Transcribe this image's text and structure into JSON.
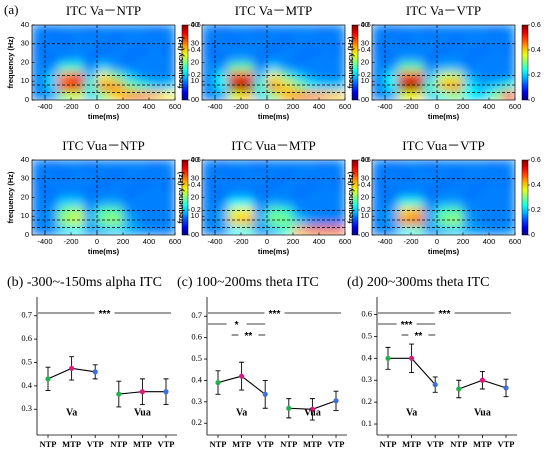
{
  "panel_label": "(a)",
  "chart_data": [
    {
      "type": "heatmap",
      "title": "ITC Va－NTP",
      "xlabel": "time(ms)",
      "ylabel": "frequency (Hz)",
      "x_bins": [
        -500,
        -400,
        -300,
        -200,
        -100,
        0,
        100,
        200,
        300,
        400,
        500,
        600
      ],
      "y_bins": [
        0,
        5,
        10,
        15,
        20,
        25,
        30,
        35,
        40
      ],
      "xlim": [
        -500,
        600
      ],
      "ylim": [
        0,
        40
      ],
      "xticks": [
        -400,
        -200,
        0,
        200,
        400,
        600
      ],
      "yticks": [
        0,
        10,
        20,
        30,
        40
      ],
      "vlines": [
        -400,
        0
      ],
      "hlines": [
        4,
        8,
        13,
        30
      ],
      "clim": [
        0,
        0.6
      ],
      "cticks": [
        0,
        0.2,
        0.4,
        0.6
      ],
      "values": [
        [
          0.15,
          0.16,
          0.3,
          0.35,
          0.2,
          0.3,
          0.4,
          0.45,
          0.45,
          0.42,
          0.38
        ],
        [
          0.15,
          0.2,
          0.5,
          0.55,
          0.25,
          0.45,
          0.45,
          0.3,
          0.25,
          0.2,
          0.2
        ],
        [
          0.15,
          0.2,
          0.45,
          0.5,
          0.2,
          0.38,
          0.3,
          0.2,
          0.16,
          0.15,
          0.15
        ],
        [
          0.15,
          0.15,
          0.25,
          0.25,
          0.15,
          0.2,
          0.16,
          0.15,
          0.15,
          0.15,
          0.15
        ],
        [
          0.15,
          0.14,
          0.15,
          0.16,
          0.14,
          0.15,
          0.15,
          0.14,
          0.15,
          0.15,
          0.15
        ],
        [
          0.14,
          0.15,
          0.15,
          0.15,
          0.15,
          0.14,
          0.15,
          0.15,
          0.14,
          0.15,
          0.14
        ],
        [
          0.15,
          0.15,
          0.14,
          0.15,
          0.15,
          0.15,
          0.14,
          0.15,
          0.15,
          0.15,
          0.15
        ],
        [
          0.15,
          0.14,
          0.15,
          0.15,
          0.14,
          0.15,
          0.15,
          0.15,
          0.15,
          0.14,
          0.15
        ]
      ]
    },
    {
      "type": "heatmap",
      "title": "ITC Va－MTP",
      "xlabel": "time(ms)",
      "ylabel": "frequency (Hz)",
      "x_bins": [
        -500,
        -400,
        -300,
        -200,
        -100,
        0,
        100,
        200,
        300,
        400,
        500,
        600
      ],
      "y_bins": [
        0,
        5,
        10,
        15,
        20,
        25,
        30,
        35,
        40
      ],
      "xlim": [
        -500,
        600
      ],
      "ylim": [
        0,
        40
      ],
      "xticks": [
        -400,
        -200,
        0,
        200,
        400,
        600
      ],
      "yticks": [
        0,
        10,
        20,
        30,
        40
      ],
      "vlines": [
        -400,
        0
      ],
      "hlines": [
        4,
        8,
        13,
        30
      ],
      "clim": [
        0,
        0.6
      ],
      "cticks": [
        0,
        0.2,
        0.4,
        0.6
      ],
      "values": [
        [
          0.15,
          0.16,
          0.35,
          0.4,
          0.2,
          0.3,
          0.42,
          0.45,
          0.45,
          0.42,
          0.4
        ],
        [
          0.15,
          0.22,
          0.58,
          0.6,
          0.25,
          0.45,
          0.4,
          0.3,
          0.22,
          0.2,
          0.2
        ],
        [
          0.15,
          0.22,
          0.5,
          0.52,
          0.2,
          0.38,
          0.28,
          0.2,
          0.16,
          0.15,
          0.15
        ],
        [
          0.15,
          0.16,
          0.28,
          0.28,
          0.15,
          0.2,
          0.16,
          0.15,
          0.15,
          0.15,
          0.15
        ],
        [
          0.15,
          0.14,
          0.16,
          0.16,
          0.14,
          0.15,
          0.15,
          0.14,
          0.15,
          0.15,
          0.15
        ],
        [
          0.14,
          0.15,
          0.15,
          0.15,
          0.15,
          0.14,
          0.15,
          0.15,
          0.14,
          0.15,
          0.14
        ],
        [
          0.15,
          0.15,
          0.14,
          0.15,
          0.15,
          0.15,
          0.14,
          0.15,
          0.15,
          0.15,
          0.15
        ],
        [
          0.15,
          0.14,
          0.15,
          0.15,
          0.14,
          0.15,
          0.15,
          0.15,
          0.15,
          0.14,
          0.15
        ]
      ]
    },
    {
      "type": "heatmap",
      "title": "ITC Va－VTP",
      "xlabel": "time(ms)",
      "ylabel": "frequency (Hz)",
      "x_bins": [
        -500,
        -400,
        -300,
        -200,
        -100,
        0,
        100,
        200,
        300,
        400,
        500,
        600
      ],
      "y_bins": [
        0,
        5,
        10,
        15,
        20,
        25,
        30,
        35,
        40
      ],
      "xlim": [
        -500,
        600
      ],
      "ylim": [
        0,
        40
      ],
      "xticks": [
        -400,
        -200,
        0,
        200,
        400,
        600
      ],
      "yticks": [
        0,
        10,
        20,
        30,
        40
      ],
      "vlines": [
        -400,
        0
      ],
      "hlines": [
        4,
        8,
        13,
        30
      ],
      "clim": [
        0,
        0.6
      ],
      "cticks": [
        0,
        0.2,
        0.4,
        0.6
      ],
      "values": [
        [
          0.15,
          0.16,
          0.35,
          0.38,
          0.2,
          0.25,
          0.3,
          0.22,
          0.2,
          0.3,
          0.5
        ],
        [
          0.15,
          0.22,
          0.58,
          0.6,
          0.25,
          0.42,
          0.45,
          0.22,
          0.18,
          0.2,
          0.25
        ],
        [
          0.15,
          0.22,
          0.5,
          0.52,
          0.2,
          0.35,
          0.35,
          0.18,
          0.15,
          0.15,
          0.15
        ],
        [
          0.15,
          0.16,
          0.28,
          0.28,
          0.15,
          0.18,
          0.18,
          0.15,
          0.15,
          0.15,
          0.15
        ],
        [
          0.15,
          0.14,
          0.16,
          0.16,
          0.14,
          0.15,
          0.15,
          0.14,
          0.15,
          0.15,
          0.15
        ],
        [
          0.14,
          0.15,
          0.15,
          0.15,
          0.15,
          0.14,
          0.15,
          0.15,
          0.14,
          0.15,
          0.14
        ],
        [
          0.15,
          0.15,
          0.14,
          0.15,
          0.15,
          0.15,
          0.14,
          0.15,
          0.15,
          0.15,
          0.15
        ],
        [
          0.15,
          0.14,
          0.15,
          0.15,
          0.14,
          0.15,
          0.15,
          0.15,
          0.15,
          0.14,
          0.15
        ]
      ]
    },
    {
      "type": "heatmap",
      "title": "ITC Vua－NTP",
      "xlabel": "time(ms)",
      "ylabel": "frequency (Hz)",
      "x_bins": [
        -500,
        -400,
        -300,
        -200,
        -100,
        0,
        100,
        200,
        300,
        400,
        500,
        600
      ],
      "y_bins": [
        0,
        5,
        10,
        15,
        20,
        25,
        30,
        35,
        40
      ],
      "xlim": [
        -500,
        600
      ],
      "ylim": [
        0,
        40
      ],
      "xticks": [
        -400,
        -200,
        0,
        200,
        400,
        600
      ],
      "yticks": [
        0,
        10,
        20,
        30,
        40
      ],
      "vlines": [
        -400,
        0
      ],
      "hlines": [
        4,
        8,
        13,
        30
      ],
      "clim": [
        0,
        0.6
      ],
      "cticks": [
        0,
        0.2,
        0.4,
        0.6
      ],
      "values": [
        [
          0.15,
          0.15,
          0.2,
          0.22,
          0.16,
          0.18,
          0.2,
          0.18,
          0.16,
          0.15,
          0.15
        ],
        [
          0.15,
          0.16,
          0.32,
          0.35,
          0.18,
          0.3,
          0.32,
          0.18,
          0.15,
          0.15,
          0.15
        ],
        [
          0.15,
          0.16,
          0.3,
          0.33,
          0.17,
          0.28,
          0.28,
          0.16,
          0.15,
          0.15,
          0.15
        ],
        [
          0.15,
          0.15,
          0.2,
          0.2,
          0.15,
          0.17,
          0.17,
          0.15,
          0.15,
          0.15,
          0.15
        ],
        [
          0.15,
          0.14,
          0.15,
          0.15,
          0.14,
          0.15,
          0.15,
          0.14,
          0.15,
          0.15,
          0.15
        ],
        [
          0.14,
          0.15,
          0.15,
          0.15,
          0.15,
          0.14,
          0.15,
          0.15,
          0.14,
          0.15,
          0.14
        ],
        [
          0.15,
          0.15,
          0.14,
          0.15,
          0.15,
          0.15,
          0.14,
          0.15,
          0.15,
          0.15,
          0.15
        ],
        [
          0.15,
          0.14,
          0.15,
          0.15,
          0.14,
          0.15,
          0.15,
          0.15,
          0.15,
          0.14,
          0.15
        ]
      ]
    },
    {
      "type": "heatmap",
      "title": "ITC Vua－MTP",
      "xlabel": "time(ms)",
      "ylabel": "frequency (Hz)",
      "x_bins": [
        -500,
        -400,
        -300,
        -200,
        -100,
        0,
        100,
        200,
        300,
        400,
        500,
        600
      ],
      "y_bins": [
        0,
        5,
        10,
        15,
        20,
        25,
        30,
        35,
        40
      ],
      "xlim": [
        -500,
        600
      ],
      "ylim": [
        0,
        40
      ],
      "xticks": [
        -400,
        -200,
        0,
        200,
        400,
        600
      ],
      "yticks": [
        0,
        10,
        20,
        30,
        40
      ],
      "vlines": [
        -400,
        0
      ],
      "hlines": [
        4,
        8,
        13,
        30
      ],
      "clim": [
        0,
        0.6
      ],
      "cticks": [
        0,
        0.2,
        0.4,
        0.6
      ],
      "values": [
        [
          0.15,
          0.15,
          0.22,
          0.24,
          0.16,
          0.18,
          0.25,
          0.42,
          0.45,
          0.45,
          0.45
        ],
        [
          0.15,
          0.17,
          0.4,
          0.42,
          0.18,
          0.3,
          0.3,
          0.2,
          0.16,
          0.15,
          0.15
        ],
        [
          0.15,
          0.17,
          0.36,
          0.38,
          0.17,
          0.28,
          0.26,
          0.16,
          0.15,
          0.15,
          0.15
        ],
        [
          0.15,
          0.15,
          0.22,
          0.22,
          0.15,
          0.17,
          0.16,
          0.15,
          0.15,
          0.15,
          0.15
        ],
        [
          0.15,
          0.14,
          0.15,
          0.15,
          0.14,
          0.15,
          0.15,
          0.14,
          0.15,
          0.15,
          0.15
        ],
        [
          0.14,
          0.15,
          0.15,
          0.15,
          0.15,
          0.14,
          0.15,
          0.15,
          0.14,
          0.15,
          0.14
        ],
        [
          0.15,
          0.15,
          0.14,
          0.15,
          0.15,
          0.15,
          0.14,
          0.15,
          0.15,
          0.15,
          0.15
        ],
        [
          0.15,
          0.14,
          0.15,
          0.15,
          0.14,
          0.15,
          0.15,
          0.15,
          0.15,
          0.14,
          0.15
        ]
      ]
    },
    {
      "type": "heatmap",
      "title": "ITC Vua－VTP",
      "xlabel": "time(ms)",
      "ylabel": "frequency (Hz)",
      "x_bins": [
        -500,
        -400,
        -300,
        -200,
        -100,
        0,
        100,
        200,
        300,
        400,
        500,
        600
      ],
      "y_bins": [
        0,
        5,
        10,
        15,
        20,
        25,
        30,
        35,
        40
      ],
      "xlim": [
        -500,
        600
      ],
      "ylim": [
        0,
        40
      ],
      "xticks": [
        -400,
        -200,
        0,
        200,
        400,
        600
      ],
      "yticks": [
        0,
        10,
        20,
        30,
        40
      ],
      "vlines": [
        -400,
        0
      ],
      "hlines": [
        4,
        8,
        13,
        30
      ],
      "clim": [
        0,
        0.6
      ],
      "cticks": [
        0,
        0.2,
        0.4,
        0.6
      ],
      "values": [
        [
          0.15,
          0.15,
          0.22,
          0.25,
          0.16,
          0.18,
          0.2,
          0.17,
          0.16,
          0.15,
          0.16
        ],
        [
          0.15,
          0.17,
          0.44,
          0.46,
          0.18,
          0.3,
          0.32,
          0.17,
          0.15,
          0.15,
          0.15
        ],
        [
          0.15,
          0.17,
          0.4,
          0.42,
          0.17,
          0.27,
          0.28,
          0.16,
          0.15,
          0.15,
          0.15
        ],
        [
          0.15,
          0.15,
          0.24,
          0.24,
          0.15,
          0.17,
          0.17,
          0.15,
          0.15,
          0.15,
          0.15
        ],
        [
          0.15,
          0.14,
          0.15,
          0.15,
          0.14,
          0.15,
          0.15,
          0.14,
          0.15,
          0.15,
          0.15
        ],
        [
          0.14,
          0.15,
          0.15,
          0.15,
          0.15,
          0.14,
          0.15,
          0.15,
          0.14,
          0.15,
          0.14
        ],
        [
          0.15,
          0.15,
          0.14,
          0.15,
          0.15,
          0.15,
          0.14,
          0.15,
          0.15,
          0.15,
          0.15
        ],
        [
          0.15,
          0.14,
          0.15,
          0.15,
          0.14,
          0.15,
          0.15,
          0.15,
          0.15,
          0.14,
          0.15
        ]
      ]
    },
    {
      "type": "errorline",
      "title": "(b) -300~-150ms alpha ITC",
      "categories": [
        "NTP",
        "MTP",
        "VTP"
      ],
      "point_colors": [
        "#22b14c",
        "#e0197d",
        "#3f6fd8"
      ],
      "groups": [
        {
          "name": "Va",
          "values": [
            0.43,
            0.475,
            0.46
          ],
          "errors": [
            0.05,
            0.05,
            0.03
          ]
        },
        {
          "name": "Vua",
          "values": [
            0.365,
            0.375,
            0.375
          ],
          "errors": [
            0.055,
            0.055,
            0.055
          ]
        }
      ],
      "ylim": [
        0.19,
        0.78
      ],
      "yticks": [
        0.3,
        0.4,
        0.5,
        0.6,
        0.7
      ],
      "annotations": [
        "***"
      ]
    },
    {
      "type": "errorline",
      "title": "(c) 100~200ms theta ITC",
      "categories": [
        "NTP",
        "MTP",
        "VTP"
      ],
      "point_colors": [
        "#22b14c",
        "#e0197d",
        "#3f6fd8"
      ],
      "groups": [
        {
          "name": "Va",
          "values": [
            0.39,
            0.42,
            0.335
          ],
          "errors": [
            0.055,
            0.065,
            0.065
          ]
        },
        {
          "name": "Vua",
          "values": [
            0.27,
            0.265,
            0.305
          ],
          "errors": [
            0.045,
            0.05,
            0.045
          ]
        }
      ],
      "ylim": [
        0.145,
        0.79
      ],
      "yticks": [
        0.2,
        0.3,
        0.4,
        0.5,
        0.6,
        0.7
      ],
      "annotations": [
        "***",
        "*",
        "**"
      ]
    },
    {
      "type": "errorline",
      "title": "(d) 200~300ms theta ITC",
      "categories": [
        "NTP",
        "MTP",
        "VTP"
      ],
      "point_colors": [
        "#22b14c",
        "#e0197d",
        "#3f6fd8"
      ],
      "groups": [
        {
          "name": "Va",
          "values": [
            0.4,
            0.4,
            0.28
          ],
          "errors": [
            0.05,
            0.065,
            0.035
          ]
        },
        {
          "name": "Vua",
          "values": [
            0.26,
            0.3,
            0.265
          ],
          "errors": [
            0.04,
            0.04,
            0.04
          ]
        }
      ],
      "ylim": [
        0.05,
        0.68
      ],
      "yticks": [
        0.1,
        0.2,
        0.3,
        0.4,
        0.5,
        0.6
      ],
      "annotations": [
        "***",
        "***",
        "**"
      ]
    }
  ]
}
